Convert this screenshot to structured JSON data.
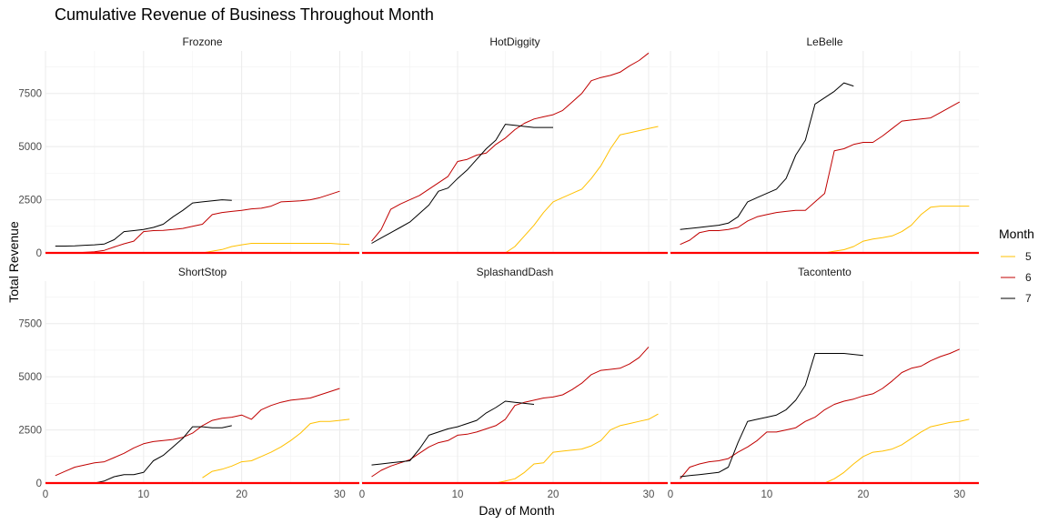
{
  "chart_data": {
    "type": "line",
    "title": "Cumulative Revenue of Business Throughout Month",
    "xlabel": "Day of Month",
    "ylabel": "Total Revenue",
    "xlim": [
      0,
      32
    ],
    "ylim": [
      0,
      9500
    ],
    "x_ticks": [
      0,
      10,
      20,
      30
    ],
    "y_ticks": [
      0,
      2500,
      5000,
      7500
    ],
    "y_tick_labels": [
      "0",
      "2500",
      "5000",
      "7500"
    ],
    "grid": true,
    "reference_line": {
      "y": 0,
      "color": "#ff0000"
    },
    "legend": {
      "title": "Month",
      "placement": "right",
      "entries": [
        {
          "label": "5",
          "color": "#ffc000"
        },
        {
          "label": "6",
          "color": "#c00000"
        },
        {
          "label": "7",
          "color": "#000000"
        }
      ]
    },
    "panels": [
      {
        "name": "Frozone",
        "series": [
          {
            "name": "5",
            "x": [
              16,
              17,
              18,
              19,
              20,
              21,
              22,
              23,
              24,
              25,
              26,
              27,
              28,
              29,
              30,
              31
            ],
            "y": [
              0,
              80,
              160,
              300,
              380,
              450,
              450,
              450,
              450,
              450,
              450,
              450,
              450,
              450,
              420,
              400
            ]
          },
          {
            "name": "6",
            "x": [
              1,
              3,
              5,
              6,
              7,
              8,
              9,
              10,
              11,
              12,
              13,
              14,
              15,
              16,
              17,
              18,
              19,
              20,
              21,
              22,
              23,
              24,
              25,
              26,
              27,
              28,
              29,
              30
            ],
            "y": [
              0,
              0,
              50,
              120,
              280,
              430,
              550,
              1000,
              1050,
              1060,
              1100,
              1150,
              1250,
              1350,
              1800,
              1900,
              1950,
              2000,
              2070,
              2100,
              2200,
              2400,
              2420,
              2450,
              2500,
              2600,
              2750,
              2900
            ]
          },
          {
            "name": "7",
            "x": [
              1,
              2,
              3,
              4,
              5,
              6,
              7,
              8,
              9,
              10,
              11,
              12,
              13,
              14,
              15,
              16,
              17,
              18,
              19
            ],
            "y": [
              320,
              320,
              330,
              360,
              380,
              420,
              620,
              1000,
              1050,
              1100,
              1200,
              1350,
              1700,
              2000,
              2350,
              2400,
              2450,
              2500,
              2470
            ]
          }
        ]
      },
      {
        "name": "HotDiggity",
        "series": [
          {
            "name": "5",
            "x": [
              15,
              16,
              17,
              18,
              19,
              20,
              21,
              22,
              23,
              24,
              25,
              26,
              27,
              28,
              29,
              30,
              31
            ],
            "y": [
              0,
              300,
              800,
              1300,
              1900,
              2400,
              2600,
              2800,
              3000,
              3500,
              4100,
              4900,
              5550,
              5650,
              5750,
              5850,
              5950
            ]
          },
          {
            "name": "6",
            "x": [
              1,
              2,
              3,
              4,
              5,
              6,
              7,
              8,
              9,
              10,
              11,
              12,
              13,
              14,
              15,
              16,
              17,
              18,
              19,
              20,
              21,
              22,
              23,
              24,
              25,
              26,
              27,
              28,
              29,
              30
            ],
            "y": [
              550,
              1100,
              2050,
              2300,
              2500,
              2700,
              3000,
              3300,
              3600,
              4300,
              4400,
              4600,
              4700,
              5100,
              5400,
              5800,
              6100,
              6300,
              6400,
              6500,
              6700,
              7100,
              7500,
              8100,
              8250,
              8350,
              8500,
              8800,
              9050,
              9400
            ]
          },
          {
            "name": "7",
            "x": [
              1,
              2,
              3,
              4,
              5,
              6,
              7,
              8,
              9,
              10,
              11,
              12,
              13,
              14,
              15,
              16,
              17,
              18,
              19,
              20
            ],
            "y": [
              450,
              700,
              950,
              1200,
              1450,
              1850,
              2250,
              2900,
              3050,
              3500,
              3900,
              4400,
              4900,
              5300,
              6050,
              6000,
              5950,
              5900,
              5900,
              5900
            ]
          }
        ]
      },
      {
        "name": "LeBelle",
        "series": [
          {
            "name": "5",
            "x": [
              16,
              17,
              18,
              19,
              20,
              21,
              22,
              23,
              24,
              25,
              26,
              27,
              28,
              29,
              30,
              31
            ],
            "y": [
              0,
              80,
              150,
              300,
              550,
              650,
              720,
              800,
              1000,
              1300,
              1800,
              2150,
              2200,
              2200,
              2200,
              2200
            ]
          },
          {
            "name": "6",
            "x": [
              1,
              2,
              3,
              4,
              5,
              6,
              7,
              8,
              9,
              10,
              11,
              12,
              13,
              14,
              15,
              16,
              17,
              18,
              19,
              20,
              21,
              22,
              23,
              24,
              25,
              26,
              27,
              28,
              29,
              30
            ],
            "y": [
              400,
              600,
              950,
              1050,
              1050,
              1100,
              1200,
              1500,
              1700,
              1800,
              1900,
              1950,
              2000,
              2000,
              2400,
              2800,
              4800,
              4900,
              5100,
              5200,
              5200,
              5500,
              5850,
              6200,
              6250,
              6300,
              6350,
              6600,
              6850,
              7100
            ]
          },
          {
            "name": "7",
            "x": [
              1,
              2,
              3,
              4,
              5,
              6,
              7,
              8,
              9,
              10,
              11,
              12,
              13,
              14,
              15,
              16,
              17,
              18,
              19
            ],
            "y": [
              1100,
              1150,
              1200,
              1250,
              1300,
              1400,
              1700,
              2400,
              2600,
              2800,
              3000,
              3500,
              4600,
              5300,
              7000,
              7300,
              7600,
              8000,
              7850
            ]
          }
        ]
      },
      {
        "name": "ShortStop",
        "series": [
          {
            "name": "5",
            "x": [
              16,
              17,
              18,
              19,
              20,
              21,
              22,
              23,
              24,
              25,
              26,
              27,
              28,
              29,
              30,
              31
            ],
            "y": [
              250,
              550,
              650,
              800,
              1000,
              1050,
              1250,
              1450,
              1700,
              2000,
              2350,
              2800,
              2900,
              2900,
              2950,
              3000
            ]
          },
          {
            "name": "6",
            "x": [
              1,
              2,
              3,
              4,
              5,
              6,
              7,
              8,
              9,
              10,
              11,
              12,
              13,
              14,
              15,
              16,
              17,
              18,
              19,
              20,
              21,
              22,
              23,
              24,
              25,
              26,
              27,
              28,
              29,
              30
            ],
            "y": [
              350,
              550,
              750,
              850,
              950,
              1000,
              1200,
              1400,
              1650,
              1850,
              1950,
              2000,
              2050,
              2150,
              2350,
              2700,
              2950,
              3050,
              3100,
              3200,
              3000,
              3450,
              3650,
              3800,
              3900,
              3950,
              4000,
              4150,
              4300,
              4450
            ]
          },
          {
            "name": "7",
            "x": [
              5,
              6,
              7,
              8,
              9,
              10,
              11,
              12,
              13,
              14,
              15,
              16,
              17,
              18,
              19
            ],
            "y": [
              0,
              100,
              300,
              400,
              400,
              500,
              1050,
              1300,
              1700,
              2100,
              2650,
              2650,
              2600,
              2600,
              2700
            ]
          }
        ]
      },
      {
        "name": "SplashandDash",
        "series": [
          {
            "name": "5",
            "x": [
              14,
              15,
              16,
              17,
              18,
              19,
              20,
              21,
              22,
              23,
              24,
              25,
              26,
              27,
              28,
              29,
              30,
              31
            ],
            "y": [
              0,
              100,
              200,
              500,
              900,
              950,
              1450,
              1500,
              1550,
              1600,
              1750,
              2000,
              2500,
              2700,
              2800,
              2900,
              3000,
              3250
            ]
          },
          {
            "name": "6",
            "x": [
              1,
              2,
              3,
              4,
              5,
              6,
              7,
              8,
              9,
              10,
              11,
              12,
              13,
              14,
              15,
              16,
              17,
              18,
              19,
              20,
              21,
              22,
              23,
              24,
              25,
              26,
              27,
              28,
              29,
              30
            ],
            "y": [
              300,
              600,
              800,
              950,
              1100,
              1400,
              1700,
              1900,
              2000,
              2250,
              2300,
              2400,
              2550,
              2700,
              3000,
              3650,
              3800,
              3900,
              4000,
              4050,
              4150,
              4400,
              4700,
              5100,
              5300,
              5350,
              5400,
              5600,
              5900,
              6400
            ]
          },
          {
            "name": "7",
            "x": [
              1,
              2,
              3,
              4,
              5,
              6,
              7,
              8,
              9,
              10,
              11,
              12,
              13,
              14,
              15,
              16,
              17,
              18
            ],
            "y": [
              850,
              900,
              950,
              1000,
              1050,
              1600,
              2250,
              2400,
              2550,
              2650,
              2800,
              2950,
              3300,
              3550,
              3850,
              3800,
              3750,
              3700
            ]
          }
        ]
      },
      {
        "name": "Tacontento",
        "series": [
          {
            "name": "5",
            "x": [
              16,
              17,
              18,
              19,
              20,
              21,
              22,
              23,
              24,
              25,
              26,
              27,
              28,
              29,
              30,
              31
            ],
            "y": [
              0,
              200,
              500,
              900,
              1250,
              1450,
              1500,
              1600,
              1800,
              2100,
              2400,
              2650,
              2750,
              2850,
              2900,
              3000
            ]
          },
          {
            "name": "6",
            "x": [
              1,
              2,
              3,
              4,
              5,
              6,
              7,
              8,
              9,
              10,
              11,
              12,
              13,
              14,
              15,
              16,
              17,
              18,
              19,
              20,
              21,
              22,
              23,
              24,
              25,
              26,
              27,
              28,
              29,
              30
            ],
            "y": [
              200,
              750,
              900,
              1000,
              1050,
              1150,
              1450,
              1700,
              2000,
              2400,
              2400,
              2500,
              2600,
              2900,
              3100,
              3450,
              3700,
              3850,
              3950,
              4100,
              4200,
              4450,
              4800,
              5200,
              5400,
              5500,
              5750,
              5950,
              6100,
              6300
            ]
          },
          {
            "name": "7",
            "x": [
              1,
              2,
              3,
              4,
              5,
              6,
              7,
              8,
              9,
              10,
              11,
              12,
              13,
              14,
              15,
              16,
              17,
              18,
              19,
              20
            ],
            "y": [
              300,
              350,
              400,
              450,
              500,
              750,
              1900,
              2900,
              3000,
              3100,
              3200,
              3450,
              3900,
              4600,
              6100,
              6100,
              6100,
              6100,
              6050,
              6000
            ]
          }
        ]
      }
    ]
  }
}
